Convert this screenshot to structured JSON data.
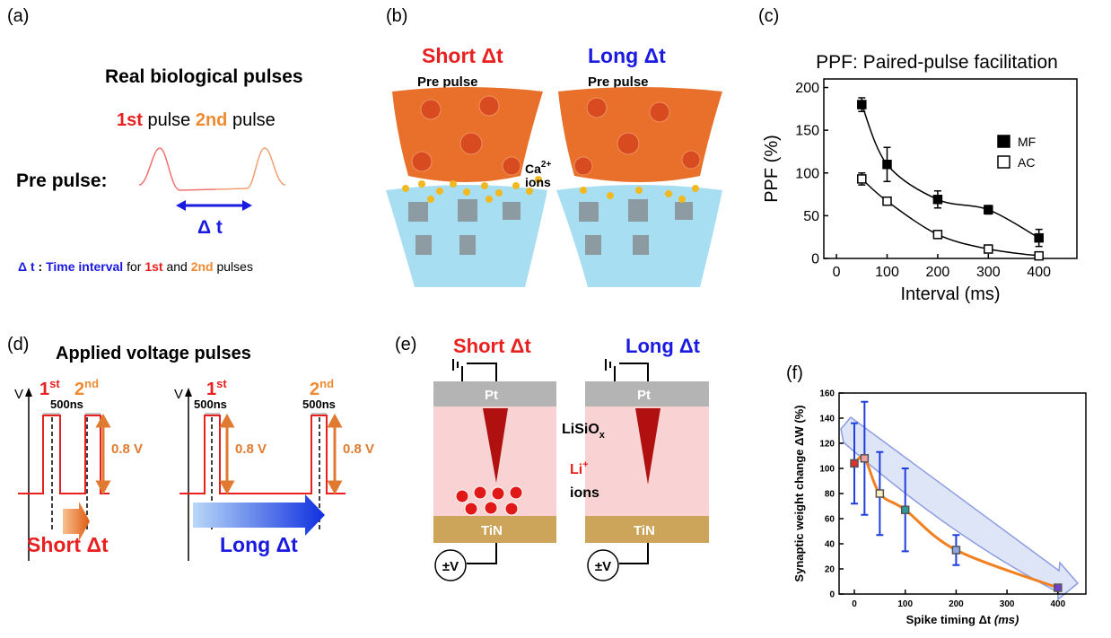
{
  "panel_a": {
    "label": "(a)",
    "title": "Real biological pulses",
    "first": "1st",
    "pulse_1": "pulse",
    "second": "2nd",
    "pulse_2": "pulse",
    "pre_pulse": "Pre pulse:",
    "delta": "Δ t",
    "note": [
      "Δ t",
      " : ",
      "Time interval",
      " for ",
      "1st",
      " and ",
      "2nd",
      " pulses"
    ]
  },
  "panel_b": {
    "label": "(b)",
    "short": "Short Δt",
    "long": "Long Δt",
    "pre_pulse_1": "Pre pulse",
    "pre_pulse_2": "Pre pulse",
    "ion": "Ca",
    "charge": "2+",
    "ions": "ions"
  },
  "panel_c": {
    "label": "(c)"
  },
  "panel_d": {
    "label": "(d)",
    "title": "Applied voltage pulses",
    "axis_1": "V",
    "axis_2": "V",
    "short_first": [
      "1",
      "st"
    ],
    "short_second": [
      "2",
      "nd"
    ],
    "short_width": "500ns",
    "short_height": "0.8 V",
    "long_first": [
      "1",
      "st"
    ],
    "long_second": [
      "2",
      "nd"
    ],
    "long_width_1": "500ns",
    "long_width_2": "500ns",
    "long_height_1": "0.8 V",
    "long_height_2": "0.8 V",
    "short": "Short Δt",
    "long": "Long Δt"
  },
  "panel_e": {
    "label": "(e)",
    "short": "Short Δt",
    "long": "Long Δt",
    "top_1": "Pt",
    "top_2": "Pt",
    "oxide": [
      "LiSiO",
      "x"
    ],
    "ion": [
      "Li",
      "+"
    ],
    "ions": "ions",
    "bottom_1": "TiN",
    "bottom_2": "TiN",
    "bias_1": "±V",
    "bias_2": "±V"
  },
  "panel_f": {
    "label": "(f)"
  },
  "chart_data": [
    {
      "type": "scatter",
      "title": "PPF: Paired-pulse facilitation",
      "xlabel": "Interval (ms)",
      "ylabel": "PPF (%)",
      "x": [
        50,
        100,
        200,
        300,
        400
      ],
      "xlim": [
        -25,
        475
      ],
      "xticks": [
        0,
        100,
        200,
        300,
        400
      ],
      "ylim": [
        0,
        210
      ],
      "yticks": [
        0,
        50,
        100,
        150,
        200
      ],
      "legend": "upper right",
      "series": [
        {
          "name": "MF",
          "color": "#000000",
          "marker_fill": "#000000",
          "values": [
            180,
            110,
            69,
            57,
            24
          ],
          "errors": [
            8,
            20,
            10,
            5,
            10
          ]
        },
        {
          "name": "AC",
          "color": "#000000",
          "marker_fill": "#ffffff",
          "values": [
            93,
            67,
            28,
            11,
            3
          ],
          "errors": [
            7,
            4,
            3,
            3,
            3
          ]
        }
      ]
    },
    {
      "type": "scatter",
      "xlabel": "Spike timing Δt",
      "xlabel_unit": "(ms)",
      "ylabel": "Synaptic weight change ΔW (%)",
      "x": [
        0,
        20,
        50,
        100,
        200,
        400
      ],
      "xlim": [
        -30,
        455
      ],
      "xticks": [
        0,
        100,
        200,
        300,
        400
      ],
      "ylim": [
        0,
        160
      ],
      "yticks": [
        0,
        20,
        40,
        60,
        80,
        100,
        120,
        140,
        160
      ],
      "series": [
        {
          "color": "#1f3fdd",
          "line_color": "#f08020",
          "colors": [
            "#e03030",
            "#f0a0a0",
            "#f8f0c0",
            "#2a9a9a",
            "#90a8e8",
            "#7040d0"
          ],
          "values": [
            104,
            108,
            80,
            67,
            35,
            5
          ],
          "errors": [
            32,
            45,
            33,
            33,
            12,
            2
          ]
        }
      ]
    }
  ]
}
